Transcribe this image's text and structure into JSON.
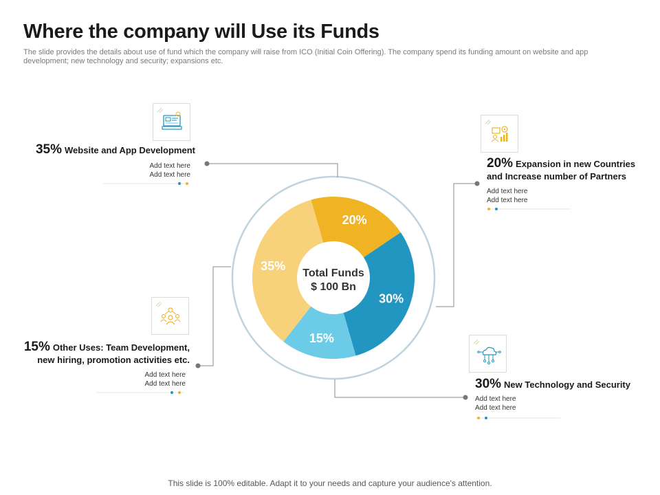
{
  "title": "Where the company will Use its Funds",
  "subtitle": "The slide provides the details about use of fund which the company will raise from ICO (Initial Coin Offering). The company spend its funding amount on website and app development; new technology and security; expansions etc.",
  "footer": "This slide is 100% editable. Adapt it to your needs and capture your audience's attention.",
  "center": {
    "line1": "Total Funds",
    "line2": "$ 100 Bn"
  },
  "callouts": {
    "website": {
      "pct": "35%",
      "label": "Website and App Development",
      "text1": "Add text here",
      "text2": "Add text here"
    },
    "expansion": {
      "pct": "20%",
      "label_line1": "Expansion in new Countries",
      "label_line2": "and Increase number of Partners",
      "text1": "Add text here",
      "text2": "Add text here"
    },
    "other": {
      "pct": "15%",
      "label_line1": "Other Uses:  Team Development,",
      "label_line2": "new hiring, promotion activities etc.",
      "text1": "Add text here",
      "text2": "Add text here"
    },
    "tech": {
      "pct": "30%",
      "label": "New Technology and Security",
      "text1": "Add text here",
      "text2": "Add text here"
    }
  },
  "icons": {
    "website": "website-development-icon",
    "expansion": "expansion-chart-icon",
    "other": "team-icon",
    "tech": "circuit-technology-icon"
  },
  "colors": {
    "website": "#f7d27a",
    "expansion": "#f0b323",
    "tech": "#2196c0",
    "other": "#6ccbe6",
    "ring": "#bfd3df",
    "connector": "#7a7a7a"
  },
  "chart_data": {
    "type": "pie",
    "variant": "donut",
    "categories": [
      "Website and App Development",
      "Expansion in new Countries and Increase number of Partners",
      "New Technology and Security",
      "Other Uses"
    ],
    "values": [
      35,
      20,
      30,
      15
    ],
    "data_labels": [
      "35%",
      "20%",
      "30%",
      "15%"
    ],
    "center_label": "Total Funds $ 100 Bn"
  }
}
